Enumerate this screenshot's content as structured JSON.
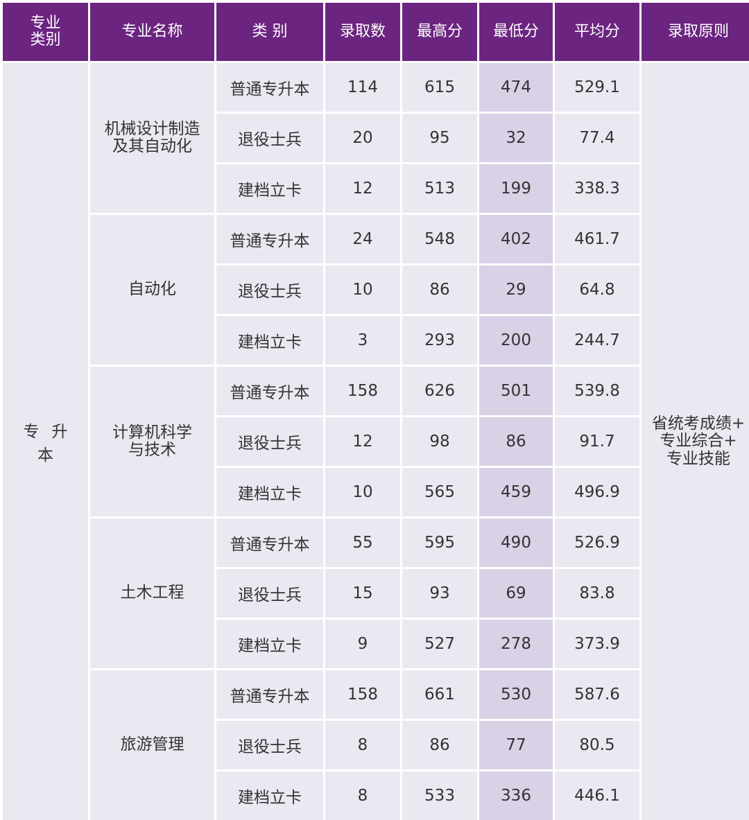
{
  "header": {
    "category": "专业\n类别",
    "major_name": "专业名称",
    "type": "类 别",
    "admitted": "录取数",
    "max": "最高分",
    "min": "最低分",
    "avg": "平均分",
    "principle": "录取原则"
  },
  "category_label": "专升本",
  "principle_text": "省统考成绩+\n专业综合+\n专业技能",
  "majors": [
    {
      "name": "机械设计制造\n及其自动化",
      "rows": [
        {
          "type": "普通专升本",
          "admitted": "114",
          "max": "615",
          "min": "474",
          "avg": "529.1"
        },
        {
          "type": "退役士兵",
          "admitted": "20",
          "max": "95",
          "min": "32",
          "avg": "77.4"
        },
        {
          "type": "建档立卡",
          "admitted": "12",
          "max": "513",
          "min": "199",
          "avg": "338.3"
        }
      ]
    },
    {
      "name": "自动化",
      "rows": [
        {
          "type": "普通专升本",
          "admitted": "24",
          "max": "548",
          "min": "402",
          "avg": "461.7"
        },
        {
          "type": "退役士兵",
          "admitted": "10",
          "max": "86",
          "min": "29",
          "avg": "64.8"
        },
        {
          "type": "建档立卡",
          "admitted": "3",
          "max": "293",
          "min": "200",
          "avg": "244.7"
        }
      ]
    },
    {
      "name": "计算机科学\n与技术",
      "rows": [
        {
          "type": "普通专升本",
          "admitted": "158",
          "max": "626",
          "min": "501",
          "avg": "539.8"
        },
        {
          "type": "退役士兵",
          "admitted": "12",
          "max": "98",
          "min": "86",
          "avg": "91.7"
        },
        {
          "type": "建档立卡",
          "admitted": "10",
          "max": "565",
          "min": "459",
          "avg": "496.9"
        }
      ]
    },
    {
      "name": "土木工程",
      "rows": [
        {
          "type": "普通专升本",
          "admitted": "55",
          "max": "595",
          "min": "490",
          "avg": "526.9"
        },
        {
          "type": "退役士兵",
          "admitted": "15",
          "max": "93",
          "min": "69",
          "avg": "83.8"
        },
        {
          "type": "建档立卡",
          "admitted": "9",
          "max": "527",
          "min": "278",
          "avg": "373.9"
        }
      ]
    },
    {
      "name": "旅游管理",
      "rows": [
        {
          "type": "普通专升本",
          "admitted": "158",
          "max": "661",
          "min": "530",
          "avg": "587.6"
        },
        {
          "type": "退役士兵",
          "admitted": "8",
          "max": "86",
          "min": "77",
          "avg": "80.5"
        },
        {
          "type": "建档立卡",
          "admitted": "8",
          "max": "533",
          "min": "336",
          "avg": "446.1"
        }
      ]
    }
  ]
}
